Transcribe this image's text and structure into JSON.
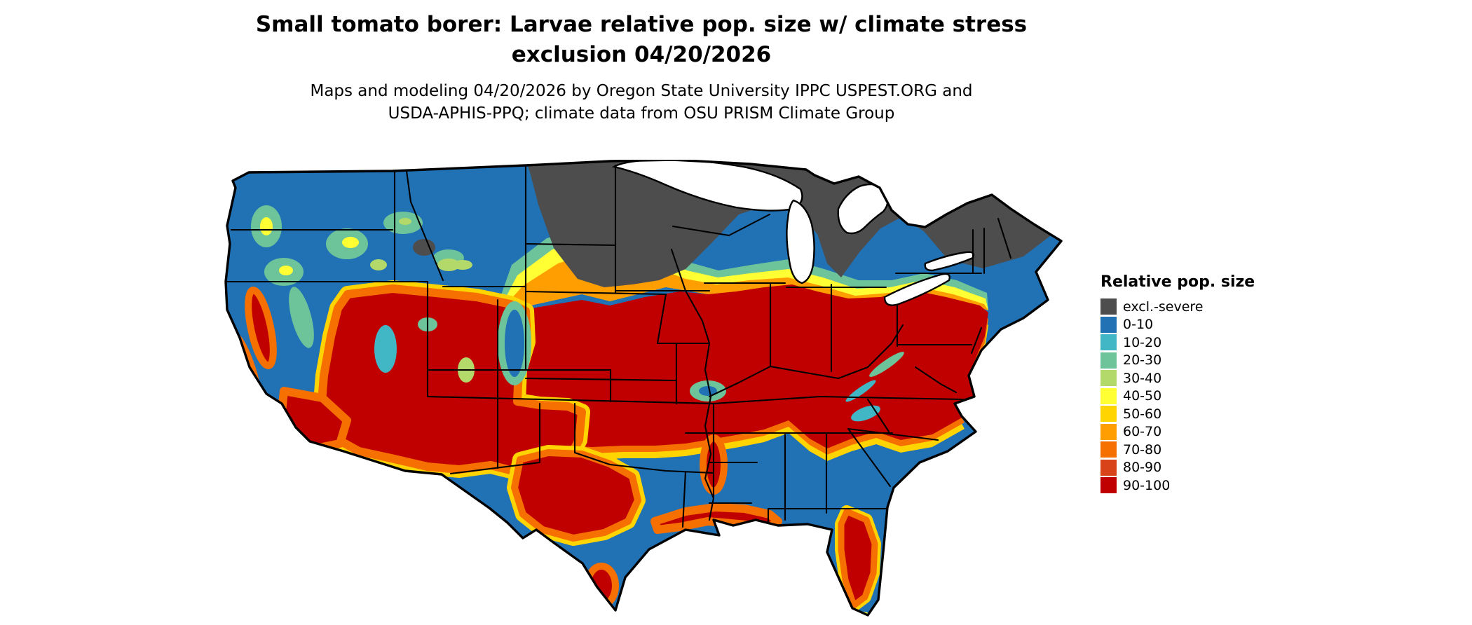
{
  "title": {
    "line1": "Small tomato borer: Larvae relative pop. size w/ climate stress",
    "line2": "exclusion 04/20/2026"
  },
  "subtitle": {
    "line1": "Maps and modeling 04/20/2026 by Oregon State University IPPC USPEST.ORG and",
    "line2": "USDA-APHIS-PPQ; climate data from OSU PRISM Climate Group"
  },
  "legend": {
    "title": "Relative pop. size",
    "items": [
      {
        "label": "excl.-severe",
        "color": "#4d4d4d"
      },
      {
        "label": "0-10",
        "color": "#2171b5"
      },
      {
        "label": "10-20",
        "color": "#41b6c4"
      },
      {
        "label": "20-30",
        "color": "#6ec49a"
      },
      {
        "label": "30-40",
        "color": "#b2d969"
      },
      {
        "label": "40-50",
        "color": "#ffff33"
      },
      {
        "label": "50-60",
        "color": "#ffd400"
      },
      {
        "label": "60-70",
        "color": "#ff9e00"
      },
      {
        "label": "70-80",
        "color": "#f57000"
      },
      {
        "label": "80-90",
        "color": "#d8431a"
      },
      {
        "label": "90-100",
        "color": "#c00000"
      }
    ]
  },
  "map_data": {
    "type": "raster-choropleth",
    "region": "Contiguous United States with state boundaries",
    "variable": "Relative pop. size",
    "classes": [
      "excl.-severe",
      "0-10",
      "10-20",
      "20-30",
      "30-40",
      "40-50",
      "50-60",
      "60-70",
      "70-80",
      "80-90",
      "90-100"
    ],
    "patterns": [
      {
        "area": "Northern tier: eastern North Dakota, Minnesota, northern Wisconsin, upper and northern Michigan, Adirondacks and northern New England",
        "value": "excl.-severe"
      },
      {
        "area": "Pacific Northwest, Montana, northern plains, Great Lakes margins, New England coast",
        "value": "0-10 with 10-50 mountain speckling"
      },
      {
        "area": "Central band from eastern Colorado and Kansas east through Missouri, Illinois, Indiana, Ohio, Kentucky, Virginia and the Mid-Atlantic coast",
        "value": "90-100"
      },
      {
        "area": "Great Basin: Nevada, Utah, Arizona, New Mexico, southeastern California and the Central Valley",
        "value": "90-100 with 0-30 mountain gaps"
      },
      {
        "area": "Nebraska and South Dakota transition belt",
        "value": "30-80 gradient"
      },
      {
        "area": "Central Texas, south Texas tip, Gulf coast strip, lower Mississippi valley, central Florida",
        "value": "80-100 patches"
      },
      {
        "area": "Texas, Oklahoma, Gulf states and southern Atlantic coastal plain",
        "value": "0-10"
      }
    ]
  }
}
